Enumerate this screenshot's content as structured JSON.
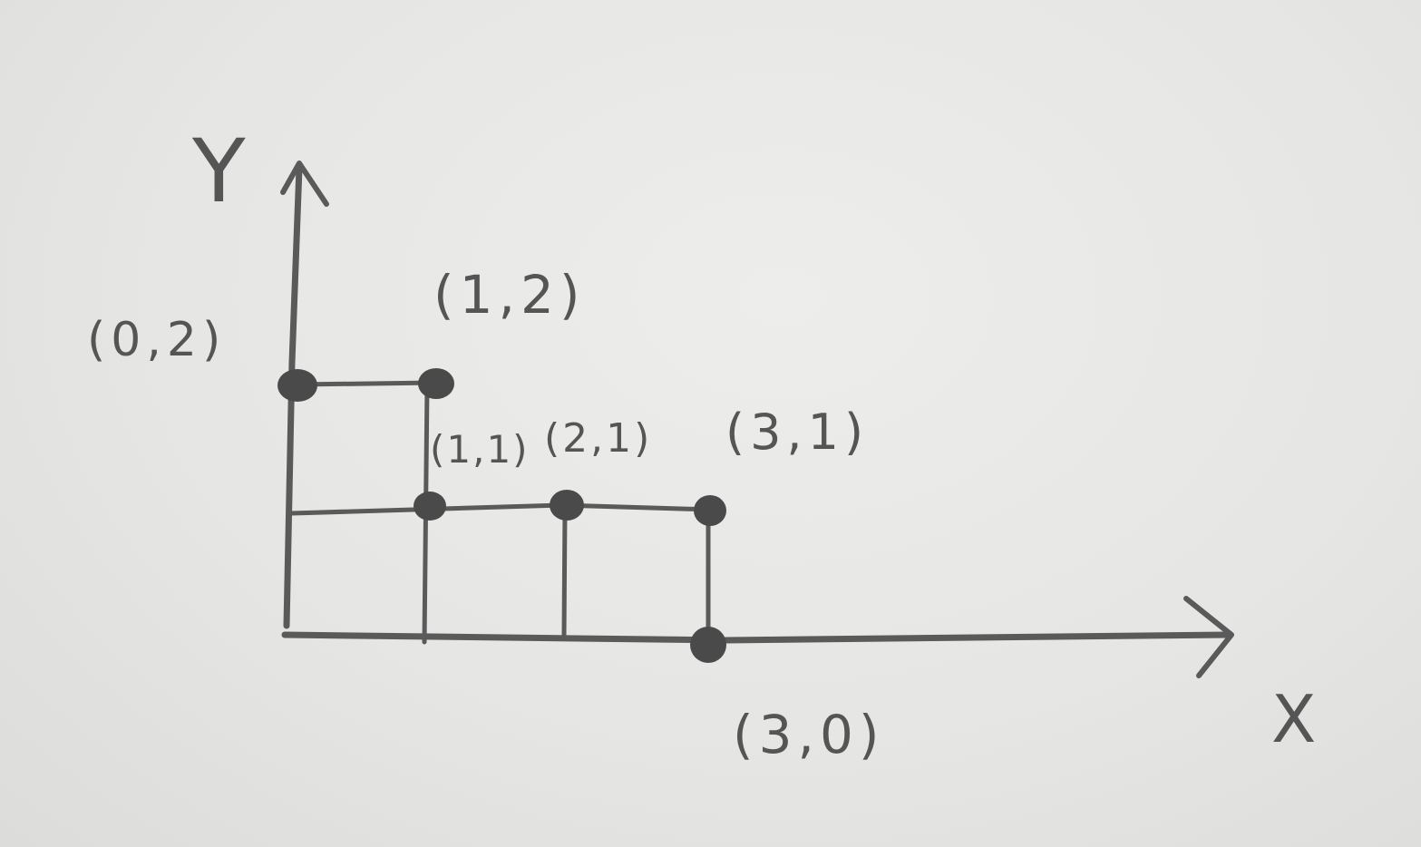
{
  "axes": {
    "x_label": "X",
    "y_label": "Y"
  },
  "points": [
    {
      "label": "(0,2)",
      "x": 0,
      "y": 2
    },
    {
      "label": "(1,2)",
      "x": 1,
      "y": 2
    },
    {
      "label": "(1,1)",
      "x": 1,
      "y": 1
    },
    {
      "label": "(2,1)",
      "x": 2,
      "y": 1
    },
    {
      "label": "(3,1)",
      "x": 3,
      "y": 1
    },
    {
      "label": "(3,0)",
      "x": 3,
      "y": 0
    }
  ],
  "colors": {
    "paper": "#e6e6e4",
    "pencil": "#5a5a5a"
  }
}
